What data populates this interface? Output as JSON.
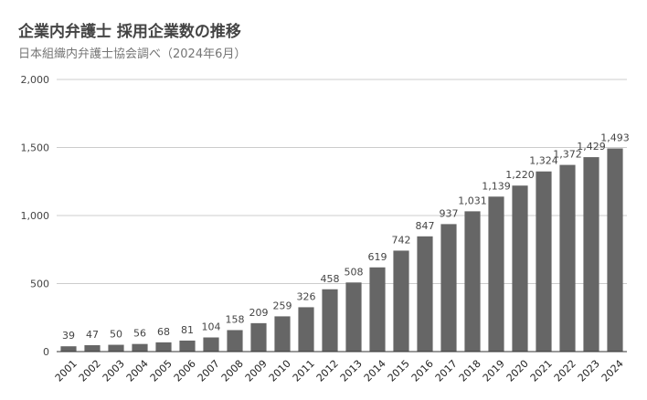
{
  "chart_data": {
    "type": "bar",
    "title": "企業内弁護士 採用企業数の推移",
    "subtitle": "日本組織内弁護士協会調べ（2024年6月）",
    "xlabel": "",
    "ylabel": "",
    "categories": [
      "2001",
      "2002",
      "2003",
      "2004",
      "2005",
      "2006",
      "2007",
      "2008",
      "2009",
      "2010",
      "2011",
      "2012",
      "2013",
      "2014",
      "2015",
      "2016",
      "2017",
      "2018",
      "2019",
      "2020",
      "2021",
      "2022",
      "2023",
      "2024"
    ],
    "values": [
      39,
      47,
      50,
      56,
      68,
      81,
      104,
      158,
      209,
      259,
      326,
      458,
      508,
      619,
      742,
      847,
      937,
      1031,
      1139,
      1220,
      1324,
      1372,
      1429,
      1493
    ],
    "value_labels": [
      "39",
      "47",
      "50",
      "56",
      "68",
      "81",
      "104",
      "158",
      "209",
      "259",
      "326",
      "458",
      "508",
      "619",
      "742",
      "847",
      "937",
      "1,031",
      "1,139",
      "1,220",
      "1,324",
      "1,372",
      "1,429",
      "1,493"
    ],
    "ylim": [
      0,
      2000
    ],
    "yticks": [
      0,
      500,
      1000,
      1500,
      2000
    ],
    "ytick_labels": [
      "0",
      "500",
      "1,000",
      "1,500",
      "2,000"
    ],
    "grid": true,
    "legend": "none",
    "bar_color": "#666666"
  }
}
